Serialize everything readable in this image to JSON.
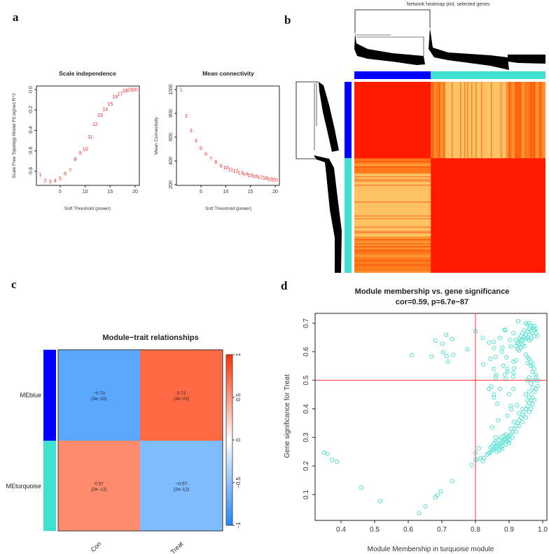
{
  "panel_labels": [
    "a",
    "b",
    "c",
    "d"
  ],
  "chart_data": [
    {
      "id": "scale-independence",
      "type": "scatter",
      "title": "Scale independence",
      "xlabel": "Soft Threshold (power)",
      "ylabel": "Scale Free Topology Model Fit,signed R^2",
      "xlim": [
        0.5,
        20.5
      ],
      "ylim": [
        -0.93,
        0.04
      ],
      "xticks": [
        5,
        10,
        15,
        20
      ],
      "yticks": [
        0.0,
        -0.2,
        -0.4,
        -0.6,
        -0.8
      ],
      "ytick_labels": [
        "0.0",
        "-0.2",
        "-0.4",
        "-0.6",
        "-0.8"
      ],
      "point_color": "#ff2020",
      "x": [
        1,
        2,
        3,
        4,
        5,
        6,
        7,
        8,
        9,
        10,
        11,
        12,
        13,
        14,
        15,
        16,
        17,
        18,
        19,
        20
      ],
      "y": [
        -0.83,
        -0.89,
        -0.9,
        -0.89,
        -0.87,
        -0.82,
        -0.79,
        -0.68,
        -0.62,
        -0.58,
        -0.46,
        -0.34,
        -0.25,
        -0.19,
        -0.14,
        -0.07,
        -0.04,
        -0.01,
        0.0,
        0.0
      ],
      "labels": [
        "1",
        "2",
        "3",
        "4",
        "5",
        "6",
        "7",
        "8",
        "9",
        "10",
        "11",
        "12",
        "13",
        "14",
        "15",
        "16",
        "17",
        "18",
        "19",
        "20"
      ]
    },
    {
      "id": "mean-connectivity",
      "type": "scatter",
      "title": "Mean connectivity",
      "xlabel": "Soft Threshold (power)",
      "ylabel": "Mean Connectivity",
      "xlim": [
        0.5,
        20.5
      ],
      "ylim": [
        200,
        1020
      ],
      "xticks": [
        5,
        10,
        15,
        20
      ],
      "yticks": [
        200,
        400,
        600,
        800,
        1000
      ],
      "point_color": "#ff2020",
      "x": [
        1,
        2,
        3,
        4,
        5,
        6,
        7,
        8,
        9,
        10,
        11,
        12,
        13,
        14,
        15,
        16,
        17,
        18,
        19,
        20
      ],
      "y": [
        1000,
        780,
        655,
        570,
        505,
        460,
        420,
        390,
        360,
        345,
        330,
        315,
        300,
        290,
        280,
        270,
        262,
        255,
        248,
        240
      ],
      "labels": [
        "1",
        "2",
        "3",
        "4",
        "5",
        "6",
        "7",
        "8",
        "9",
        "10",
        "11",
        "12",
        "13",
        "14",
        "15",
        "16",
        "17",
        "18",
        "19",
        "20"
      ]
    },
    {
      "id": "network-heatmap",
      "type": "heatmap",
      "title": "Network heatmap plot, selected genes",
      "modules": [
        {
          "name": "blue",
          "color": "#0000ff",
          "fraction": 0.4
        },
        {
          "name": "turquoise",
          "color": "#40e0d0",
          "fraction": 0.6
        }
      ],
      "colors": {
        "high": "#ff1a00",
        "mid": "#ff7a1a",
        "low": "#ffd070"
      }
    },
    {
      "id": "module-trait",
      "type": "heatmap",
      "title": "Module−trait relationships",
      "rows": [
        "MEblue",
        "MEturquoise"
      ],
      "row_colors": [
        "#0000ff",
        "#40e0d0"
      ],
      "columns": [
        "Con",
        "Treat"
      ],
      "values": [
        [
          -0.73,
          0.73
        ],
        [
          0.57,
          -0.57
        ]
      ],
      "value_labels": [
        [
          "−0.73",
          "0.73"
        ],
        [
          "0.57",
          "−0.57"
        ]
      ],
      "pvalues": [
        [
          "(3e−22)",
          "(3e−22)"
        ],
        [
          "(2e−12)",
          "(2e−12)"
        ]
      ],
      "colorbar": {
        "range": [
          -1,
          1
        ],
        "ticks": [
          "1",
          "0.5",
          "0",
          "−0.5",
          "−1"
        ],
        "tick_values": [
          1,
          0.5,
          0,
          -0.5,
          -1
        ],
        "high": "#ff3300",
        "mid": "#ffffff",
        "low": "#1e88ff"
      }
    },
    {
      "id": "mm-vs-gs",
      "type": "scatter",
      "title": "Module membership vs. gene significance",
      "subtitle": "cor=0.59, p=6.7e−87",
      "xlabel": "Module Membership in turquoise module",
      "ylabel": "Gene significance for  Treat",
      "xlim": [
        0.33,
        1.01
      ],
      "ylim": [
        0.01,
        0.735
      ],
      "xticks": [
        0.4,
        0.5,
        0.6,
        0.7,
        0.8,
        0.9,
        1.0
      ],
      "xtick_labels": [
        "0.4",
        "0.5",
        "0.6",
        "0.7",
        "0.8",
        "0.9",
        "1.0"
      ],
      "yticks": [
        0.1,
        0.2,
        0.3,
        0.4,
        0.5,
        0.6,
        0.7
      ],
      "ytick_labels": [
        "0.1",
        "0.2",
        "0.3",
        "0.4",
        "0.5",
        "0.6",
        "0.7"
      ],
      "threshold_lines": {
        "x": 0.8,
        "y": 0.5,
        "color": "#ff3030"
      },
      "point_color": "#40e0d0",
      "points": [
        [
          0.35,
          0.247
        ],
        [
          0.36,
          0.242
        ],
        [
          0.373,
          0.222
        ],
        [
          0.388,
          0.215
        ],
        [
          0.461,
          0.124
        ],
        [
          0.517,
          0.077
        ],
        [
          0.632,
          0.035
        ],
        [
          0.651,
          0.059
        ],
        [
          0.681,
          0.09
        ],
        [
          0.687,
          0.098
        ],
        [
          0.697,
          0.111
        ],
        [
          0.731,
          0.147
        ],
        [
          0.789,
          0.204
        ],
        [
          0.8,
          0.246
        ],
        [
          0.8,
          0.222
        ],
        [
          0.81,
          0.262
        ],
        [
          0.805,
          0.223
        ],
        [
          0.815,
          0.227
        ],
        [
          0.822,
          0.218
        ],
        [
          0.825,
          0.228
        ],
        [
          0.61,
          0.588
        ],
        [
          0.669,
          0.583
        ],
        [
          0.681,
          0.639
        ],
        [
          0.702,
          0.628
        ],
        [
          0.704,
          0.599
        ],
        [
          0.713,
          0.659
        ],
        [
          0.714,
          0.585
        ],
        [
          0.718,
          0.565
        ],
        [
          0.731,
          0.644
        ],
        [
          0.734,
          0.589
        ],
        [
          0.776,
          0.609
        ],
        [
          0.8,
          0.672
        ],
        [
          0.822,
          0.649
        ],
        [
          0.823,
          0.556
        ],
        [
          0.84,
          0.632
        ],
        [
          0.845,
          0.575
        ],
        [
          0.855,
          0.635
        ],
        [
          0.855,
          0.613
        ],
        [
          0.86,
          0.582
        ],
        [
          0.855,
          0.54
        ],
        [
          0.86,
          0.51
        ],
        [
          0.862,
          0.52
        ],
        [
          0.873,
          0.648
        ],
        [
          0.88,
          0.615
        ],
        [
          0.878,
          0.6
        ],
        [
          0.887,
          0.677
        ],
        [
          0.888,
          0.675
        ],
        [
          0.883,
          0.551
        ],
        [
          0.887,
          0.52
        ],
        [
          0.892,
          0.58
        ],
        [
          0.895,
          0.54
        ],
        [
          0.895,
          0.53
        ],
        [
          0.89,
          0.505
        ],
        [
          0.84,
          0.47
        ],
        [
          0.847,
          0.478
        ],
        [
          0.855,
          0.45
        ],
        [
          0.855,
          0.44
        ],
        [
          0.865,
          0.418
        ],
        [
          0.873,
          0.47
        ],
        [
          0.867,
          0.36
        ],
        [
          0.85,
          0.336
        ],
        [
          0.9,
          0.452
        ],
        [
          0.913,
          0.47
        ],
        [
          0.895,
          0.376
        ],
        [
          0.905,
          0.41
        ],
        [
          0.907,
          0.398
        ],
        [
          0.905,
          0.618
        ],
        [
          0.903,
          0.641
        ],
        [
          0.913,
          0.665
        ],
        [
          0.913,
          0.565
        ],
        [
          0.915,
          0.542
        ],
        [
          0.913,
          0.527
        ],
        [
          0.912,
          0.513
        ],
        [
          0.921,
          0.57
        ],
        [
          0.927,
          0.707
        ],
        [
          0.923,
          0.413
        ],
        [
          0.835,
          0.24
        ],
        [
          0.84,
          0.245
        ],
        [
          0.845,
          0.25
        ],
        [
          0.85,
          0.255
        ],
        [
          0.855,
          0.26
        ],
        [
          0.86,
          0.265
        ],
        [
          0.865,
          0.27
        ],
        [
          0.87,
          0.275
        ],
        [
          0.875,
          0.28
        ],
        [
          0.88,
          0.285
        ],
        [
          0.885,
          0.29
        ],
        [
          0.89,
          0.295
        ],
        [
          0.895,
          0.3
        ],
        [
          0.9,
          0.305
        ],
        [
          0.905,
          0.31
        ],
        [
          0.91,
          0.32
        ],
        [
          0.915,
          0.33
        ],
        [
          0.92,
          0.34
        ],
        [
          0.925,
          0.35
        ],
        [
          0.93,
          0.36
        ],
        [
          0.935,
          0.37
        ],
        [
          0.94,
          0.38
        ],
        [
          0.945,
          0.39
        ],
        [
          0.95,
          0.4
        ],
        [
          0.955,
          0.41
        ],
        [
          0.96,
          0.42
        ],
        [
          0.965,
          0.43
        ],
        [
          0.97,
          0.44
        ],
        [
          0.975,
          0.46
        ],
        [
          0.98,
          0.47
        ],
        [
          0.985,
          0.48
        ],
        [
          0.85,
          0.27
        ],
        [
          0.86,
          0.285
        ],
        [
          0.87,
          0.29
        ],
        [
          0.865,
          0.25
        ],
        [
          0.875,
          0.265
        ],
        [
          0.88,
          0.27
        ],
        [
          0.885,
          0.305
        ],
        [
          0.895,
          0.285
        ],
        [
          0.9,
          0.29
        ],
        [
          0.91,
          0.3
        ],
        [
          0.92,
          0.32
        ],
        [
          0.93,
          0.34
        ],
        [
          0.94,
          0.355
        ],
        [
          0.95,
          0.37
        ],
        [
          0.96,
          0.39
        ],
        [
          0.965,
          0.4
        ],
        [
          0.97,
          0.415
        ],
        [
          0.975,
          0.43
        ],
        [
          0.96,
          0.44
        ],
        [
          0.955,
          0.43
        ],
        [
          0.94,
          0.4
        ],
        [
          0.93,
          0.385
        ],
        [
          0.915,
          0.355
        ],
        [
          0.905,
          0.33
        ],
        [
          0.89,
          0.31
        ],
        [
          0.875,
          0.3
        ],
        [
          0.86,
          0.3
        ],
        [
          0.855,
          0.28
        ],
        [
          0.845,
          0.265
        ],
        [
          0.87,
          0.255
        ],
        [
          0.88,
          0.26
        ],
        [
          0.89,
          0.275
        ],
        [
          0.9,
          0.28
        ],
        [
          0.985,
          0.5
        ],
        [
          0.98,
          0.52
        ],
        [
          0.975,
          0.54
        ],
        [
          0.97,
          0.555
        ],
        [
          0.965,
          0.565
        ],
        [
          0.96,
          0.575
        ],
        [
          0.955,
          0.58
        ],
        [
          0.95,
          0.59
        ],
        [
          0.97,
          0.53
        ],
        [
          0.98,
          0.51
        ],
        [
          0.96,
          0.51
        ],
        [
          0.955,
          0.5
        ],
        [
          0.965,
          0.49
        ],
        [
          0.97,
          0.475
        ],
        [
          0.96,
          0.46
        ],
        [
          0.95,
          0.45
        ],
        [
          0.975,
          0.5
        ],
        [
          0.965,
          0.55
        ],
        [
          0.955,
          0.56
        ],
        [
          0.94,
          0.64
        ],
        [
          0.945,
          0.65
        ],
        [
          0.95,
          0.66
        ],
        [
          0.955,
          0.67
        ],
        [
          0.96,
          0.68
        ],
        [
          0.965,
          0.69
        ],
        [
          0.97,
          0.685
        ],
        [
          0.975,
          0.675
        ],
        [
          0.98,
          0.665
        ],
        [
          0.985,
          0.655
        ],
        [
          0.95,
          0.7
        ],
        [
          0.955,
          0.695
        ],
        [
          0.96,
          0.7
        ],
        [
          0.965,
          0.675
        ],
        [
          0.97,
          0.665
        ],
        [
          0.975,
          0.655
        ],
        [
          0.96,
          0.66
        ],
        [
          0.955,
          0.65
        ],
        [
          0.95,
          0.645
        ],
        [
          0.945,
          0.675
        ],
        [
          0.94,
          0.665
        ],
        [
          0.935,
          0.655
        ],
        [
          0.93,
          0.645
        ],
        [
          0.965,
          0.645
        ],
        [
          0.975,
          0.69
        ],
        [
          0.98,
          0.68
        ],
        [
          0.96,
          0.64
        ],
        [
          0.92,
          0.62
        ],
        [
          0.925,
          0.61
        ],
        [
          0.93,
          0.605
        ],
        [
          0.935,
          0.615
        ],
        [
          0.925,
          0.63
        ],
        [
          0.93,
          0.625
        ],
        [
          0.935,
          0.64
        ],
        [
          0.94,
          0.625
        ],
        [
          0.945,
          0.62
        ],
        [
          0.92,
          0.64
        ]
      ]
    }
  ]
}
